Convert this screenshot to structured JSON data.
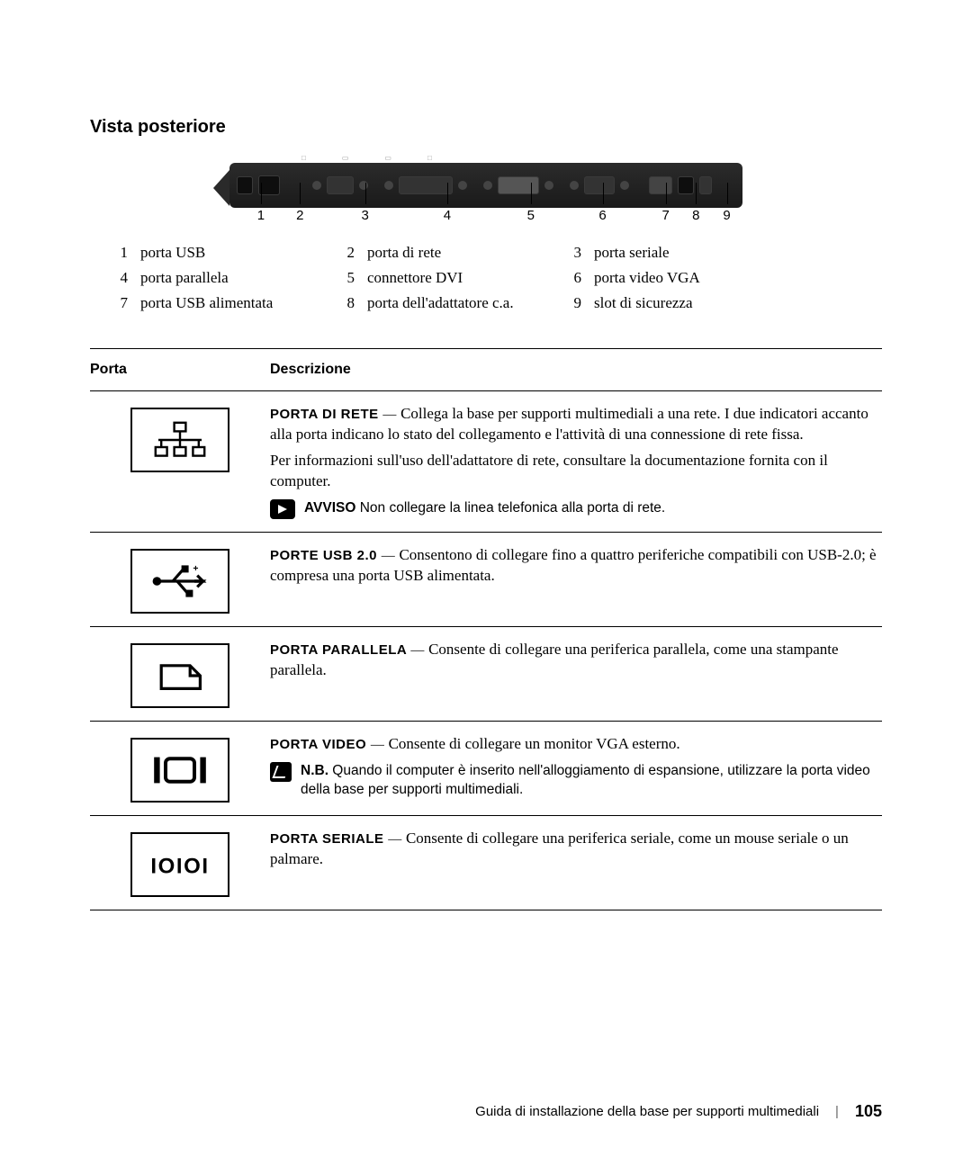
{
  "section_title": "Vista posteriore",
  "callouts": [
    "1",
    "2",
    "3",
    "4",
    "5",
    "6",
    "7",
    "8",
    "9"
  ],
  "callout_positions_pct": [
    5.4,
    13.0,
    25.7,
    41.7,
    58.0,
    72.0,
    84.3,
    90.2,
    96.2
  ],
  "legend": {
    "rows": [
      [
        {
          "n": "1",
          "l": "porta USB"
        },
        {
          "n": "2",
          "l": "porta di rete"
        },
        {
          "n": "3",
          "l": "porta seriale"
        }
      ],
      [
        {
          "n": "4",
          "l": "porta parallela"
        },
        {
          "n": "5",
          "l": "connettore DVI"
        },
        {
          "n": "6",
          "l": "porta video VGA"
        }
      ],
      [
        {
          "n": "7",
          "l": "porta USB alimentata"
        },
        {
          "n": "8",
          "l": "porta dell'adattatore c.a."
        },
        {
          "n": "9",
          "l": "slot di sicurezza"
        }
      ]
    ]
  },
  "table": {
    "header": {
      "porta": "Porta",
      "desc": "Descrizione"
    },
    "rows": [
      {
        "icon": "network",
        "title": "PORTA DI RETE",
        "text": "Collega la base per supporti multimediali a una rete. I due indicatori accanto alla porta indicano lo stato del collegamento e l'attività di una connessione di rete fissa.",
        "text2": "Per informazioni sull'uso dell'adattatore di rete, consultare la documentazione fornita con il computer.",
        "avviso_label": "AVVISO",
        "avviso": "Non collegare la linea telefonica alla porta di rete."
      },
      {
        "icon": "usb",
        "title": "PORTE USB 2.0",
        "text": "Consentono di collegare fino a quattro periferiche compatibili con USB-2.0; è compresa una porta USB alimentata."
      },
      {
        "icon": "parallel",
        "title": "PORTA PARALLELA",
        "text": "Consente di collegare una periferica parallela, come una stampante parallela."
      },
      {
        "icon": "video",
        "title": "PORTA VIDEO",
        "text": "Consente di collegare un monitor VGA esterno.",
        "nb_label": "N.B.",
        "nb": "Quando il computer è inserito nell'alloggiamento di espansione, utilizzare la porta video della base per supporti multimediali."
      },
      {
        "icon": "serial",
        "title": "PORTA SERIALE",
        "text": "Consente di collegare una periferica seriale, come un mouse seriale o un palmare."
      }
    ]
  },
  "footer": {
    "text": "Guida di installazione della base per supporti multimediali",
    "page": "105"
  },
  "colors": {
    "text": "#000",
    "rule": "#000",
    "bg": "#ffffff",
    "device": "#1a1a1a"
  }
}
